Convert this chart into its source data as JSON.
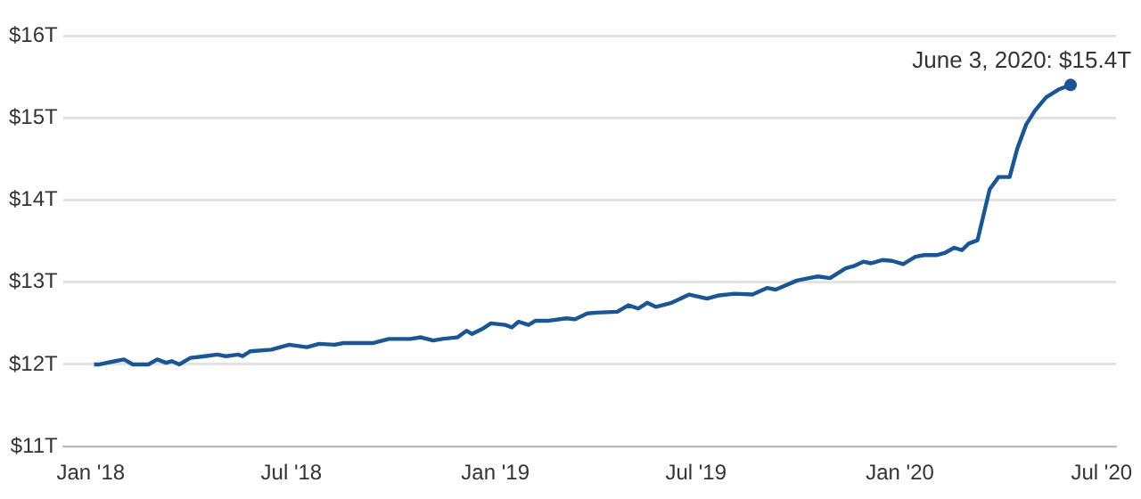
{
  "chart_data": {
    "type": "line",
    "x": [
      "2018-01-04",
      "2018-01-09",
      "2018-01-23",
      "2018-01-31",
      "2018-02-08",
      "2018-02-22",
      "2018-03-02",
      "2018-03-10",
      "2018-03-15",
      "2018-03-22",
      "2018-04-01",
      "2018-04-14",
      "2018-04-25",
      "2018-05-03",
      "2018-05-14",
      "2018-05-18",
      "2018-05-25",
      "2018-06-13",
      "2018-06-29",
      "2018-07-15",
      "2018-07-26",
      "2018-08-09",
      "2018-08-17",
      "2018-09-13",
      "2018-09-27",
      "2018-10-16",
      "2018-10-26",
      "2018-11-06",
      "2018-11-14",
      "2018-11-28",
      "2018-12-06",
      "2018-12-11",
      "2018-12-20",
      "2018-12-28",
      "2019-01-10",
      "2019-01-16",
      "2019-01-22",
      "2019-01-31",
      "2019-02-06",
      "2019-02-17",
      "2019-03-06",
      "2019-03-14",
      "2019-03-25",
      "2019-04-02",
      "2019-04-21",
      "2019-05-01",
      "2019-05-10",
      "2019-05-18",
      "2019-05-26",
      "2019-06-09",
      "2019-06-25",
      "2019-07-11",
      "2019-07-22",
      "2019-08-05",
      "2019-08-21",
      "2019-09-03",
      "2019-09-11",
      "2019-09-30",
      "2019-10-11",
      "2019-10-19",
      "2019-10-30",
      "2019-11-13",
      "2019-11-21",
      "2019-11-29",
      "2019-12-06",
      "2019-12-16",
      "2019-12-25",
      "2020-01-04",
      "2020-01-15",
      "2020-01-23",
      "2020-02-03",
      "2020-02-11",
      "2020-02-19",
      "2020-02-26",
      "2020-03-03",
      "2020-03-11",
      "2020-03-22",
      "2020-03-30",
      "2020-04-09",
      "2020-04-16",
      "2020-04-24",
      "2020-05-02",
      "2020-05-12",
      "2020-05-24",
      "2020-06-03"
    ],
    "series": [
      {
        "color": "#1b5694",
        "values": [
          12.0,
          12.0,
          12.04,
          12.06,
          12.0,
          12.0,
          12.06,
          12.02,
          12.04,
          12.0,
          12.08,
          12.1,
          12.12,
          12.1,
          12.12,
          12.1,
          12.16,
          12.18,
          12.24,
          12.21,
          12.25,
          12.24,
          12.26,
          12.26,
          12.31,
          12.31,
          12.33,
          12.29,
          12.31,
          12.33,
          12.41,
          12.37,
          12.43,
          12.5,
          12.48,
          12.45,
          12.52,
          12.48,
          12.53,
          12.53,
          12.56,
          12.55,
          12.62,
          12.63,
          12.64,
          12.72,
          12.68,
          12.75,
          12.7,
          12.75,
          12.85,
          12.8,
          12.84,
          12.86,
          12.85,
          12.93,
          12.91,
          13.02,
          13.05,
          13.07,
          13.05,
          13.17,
          13.2,
          13.25,
          13.23,
          13.27,
          13.26,
          13.22,
          13.31,
          13.33,
          13.33,
          13.36,
          13.42,
          13.39,
          13.47,
          13.51,
          14.13,
          14.28,
          14.28,
          14.63,
          14.92,
          15.09,
          15.25,
          15.35,
          15.4
        ]
      }
    ],
    "xlim": [
      "2017-12-07",
      "2020-07-14"
    ],
    "xticks": [
      {
        "value": "2018-01-01",
        "label": "Jan '18"
      },
      {
        "value": "2018-07-01",
        "label": "Jul '18"
      },
      {
        "value": "2019-01-01",
        "label": "Jan '19"
      },
      {
        "value": "2019-07-01",
        "label": "Jul '19"
      },
      {
        "value": "2020-01-01",
        "label": "Jan '20"
      },
      {
        "value": "2020-07-01",
        "label": "Jul '20"
      }
    ],
    "ylim": [
      11,
      16
    ],
    "yticks": [
      {
        "value": 11,
        "label": "$11T"
      },
      {
        "value": 12,
        "label": "$12T"
      },
      {
        "value": 13,
        "label": "$13T"
      },
      {
        "value": 14,
        "label": "$14T"
      },
      {
        "value": 15,
        "label": "$15T"
      },
      {
        "value": 16,
        "label": "$16T"
      }
    ],
    "grid": "y",
    "legend": false,
    "annotations": [
      {
        "text": "June 3, 2020: $15.4T",
        "x": "2020-06-03",
        "y": 15.4
      }
    ]
  }
}
